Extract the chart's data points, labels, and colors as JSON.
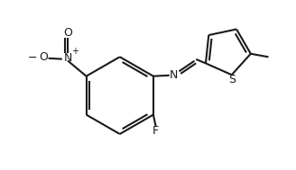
{
  "bg_color": "#ffffff",
  "line_color": "#1a1a1a",
  "lw": 1.5,
  "figsize": [
    3.28,
    1.89
  ],
  "dpi": 100,
  "xlim": [
    -0.1,
    3.5
  ],
  "ylim": [
    -0.1,
    2.0
  ]
}
